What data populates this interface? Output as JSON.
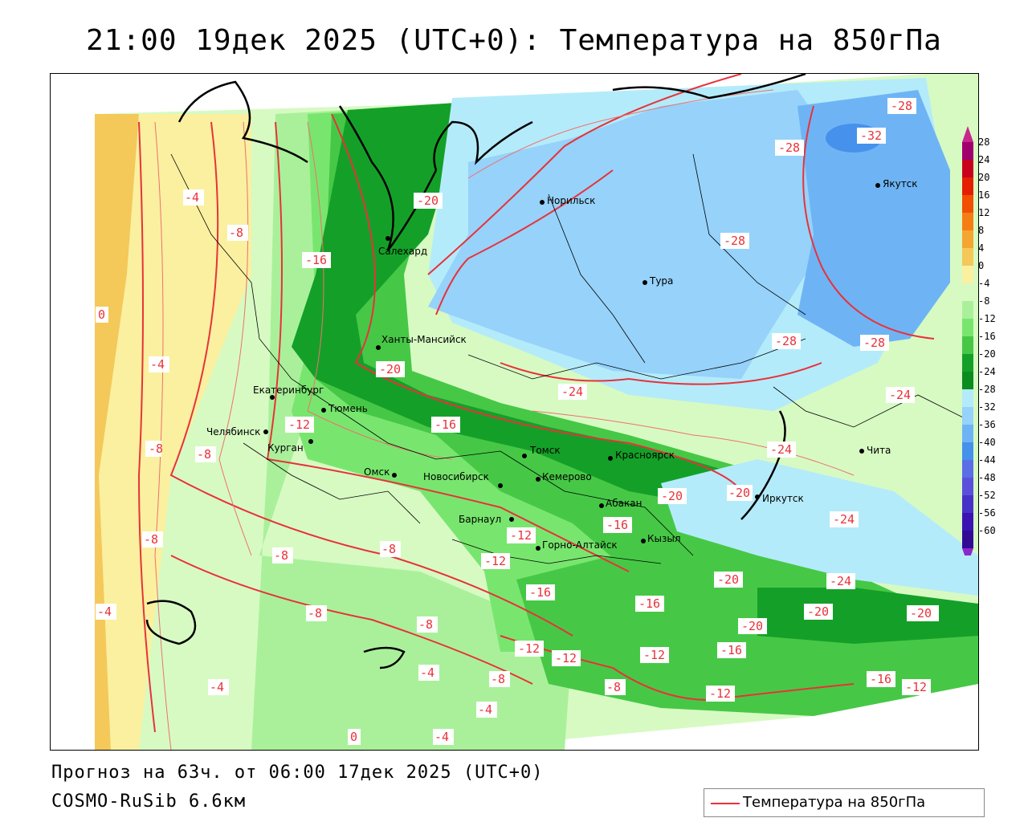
{
  "title": "21:00 19дек 2025 (UTC+0): Температура на 850гПа",
  "forecast_info": "Прогноз на 63ч. от 06:00 17дек 2025 (UTC+0)",
  "model_info": "COSMO-RuSib 6.6км",
  "legend": {
    "line_label": "Температура на 850гПа",
    "line_color": "#e8323a"
  },
  "colorbar": {
    "labels": [
      "28",
      "24",
      "20",
      "16",
      "12",
      "8",
      "4",
      "0",
      "-4",
      "-8",
      "-12",
      "-16",
      "-20",
      "-24",
      "-28",
      "-32",
      "-36",
      "-40",
      "-44",
      "-48",
      "-52",
      "-56",
      "-60"
    ],
    "colors": [
      "#a0006e",
      "#c8001e",
      "#e61e00",
      "#f05000",
      "#f57d14",
      "#f5a532",
      "#f5c85a",
      "#faf0a0",
      "#d7fac3",
      "#aaf09b",
      "#78e66e",
      "#46c846",
      "#14a028",
      "#0a8c1e",
      "#b4ebfa",
      "#96d2fa",
      "#6eb4f5",
      "#4691eb",
      "#5a6ee6",
      "#5a50dc",
      "#4632c8",
      "#3c14b4",
      "#320a96"
    ]
  },
  "cities": [
    {
      "name": "Норильск"
    },
    {
      "name": "Якутск"
    },
    {
      "name": "Салехард"
    },
    {
      "name": "Тура"
    },
    {
      "name": "Ханты-Мансийск"
    },
    {
      "name": "Екатеринбург"
    },
    {
      "name": "Тюмень"
    },
    {
      "name": "Челябинск"
    },
    {
      "name": "Курган"
    },
    {
      "name": "Омск"
    },
    {
      "name": "Новосибирск"
    },
    {
      "name": "Томск"
    },
    {
      "name": "Красноярск"
    },
    {
      "name": "Кемерово"
    },
    {
      "name": "Барнаул"
    },
    {
      "name": "Абакан"
    },
    {
      "name": "Горно-Алтайск"
    },
    {
      "name": "Кызыл"
    },
    {
      "name": "Иркутск"
    },
    {
      "name": "Чита"
    }
  ],
  "isotherm_labels": [
    "-28",
    "-32",
    "-28",
    "-20",
    "-28",
    "-4",
    "-8",
    "-16",
    "0",
    "-28",
    "-28",
    "-4",
    "-20",
    "-24",
    "-24",
    "-12",
    "-16",
    "-8",
    "-8",
    "-24",
    "-20",
    "-20",
    "-24",
    "-12",
    "-16",
    "-8",
    "-8",
    "-12",
    "-8",
    "-20",
    "-24",
    "-16",
    "-4",
    "-8",
    "-16",
    "-20",
    "-20",
    "-20",
    "-8",
    "-12",
    "-12",
    "-12",
    "-16",
    "-4",
    "-8",
    "-8",
    "-12",
    "-16",
    "-12",
    "-4",
    "-4",
    "0",
    "-4"
  ]
}
